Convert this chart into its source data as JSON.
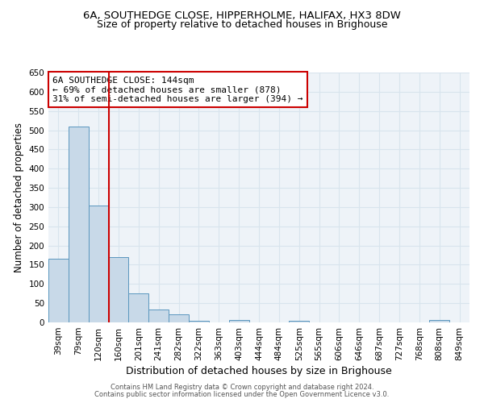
{
  "title1": "6A, SOUTHEDGE CLOSE, HIPPERHOLME, HALIFAX, HX3 8DW",
  "title2": "Size of property relative to detached houses in Brighouse",
  "xlabel": "Distribution of detached houses by size in Brighouse",
  "ylabel": "Number of detached properties",
  "bar_labels": [
    "39sqm",
    "79sqm",
    "120sqm",
    "160sqm",
    "201sqm",
    "241sqm",
    "282sqm",
    "322sqm",
    "363sqm",
    "403sqm",
    "444sqm",
    "484sqm",
    "525sqm",
    "565sqm",
    "606sqm",
    "646sqm",
    "687sqm",
    "727sqm",
    "768sqm",
    "808sqm",
    "849sqm"
  ],
  "bar_values": [
    165,
    510,
    303,
    170,
    76,
    33,
    21,
    5,
    0,
    6,
    0,
    0,
    5,
    0,
    0,
    0,
    0,
    0,
    0,
    6,
    0
  ],
  "bar_color": "#c8d9e8",
  "bar_edge_color": "#5a96be",
  "vline_color": "#cc0000",
  "annotation_text": "6A SOUTHEDGE CLOSE: 144sqm\n← 69% of detached houses are smaller (878)\n31% of semi-detached houses are larger (394) →",
  "annotation_box_color": "white",
  "annotation_box_edge": "#cc0000",
  "ylim": [
    0,
    650
  ],
  "yticks": [
    0,
    50,
    100,
    150,
    200,
    250,
    300,
    350,
    400,
    450,
    500,
    550,
    600,
    650
  ],
  "bg_color": "#eef3f8",
  "grid_color": "#d8e4ed",
  "footer1": "Contains HM Land Registry data © Crown copyright and database right 2024.",
  "footer2": "Contains public sector information licensed under the Open Government Licence v3.0.",
  "title1_fontsize": 9.5,
  "title2_fontsize": 9,
  "xlabel_fontsize": 9,
  "ylabel_fontsize": 8.5,
  "tick_fontsize": 7.5,
  "annot_fontsize": 8,
  "footer_fontsize": 6
}
